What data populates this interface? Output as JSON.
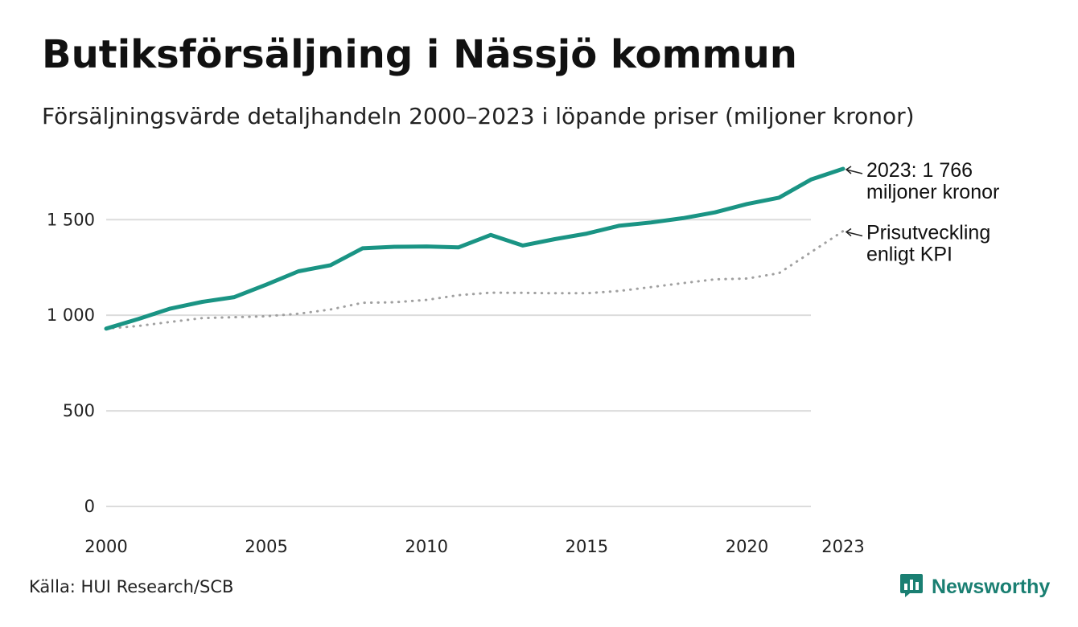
{
  "title": "Butiksförsäljning i Nässjö kommun",
  "subtitle": "Försäljningsvärde detaljhandeln 2000–2023 i löpande priser (miljoner kronor)",
  "source": "Källa: HUI Research/SCB",
  "brand": {
    "name": "Newsworthy",
    "icon": "bar-chart-speech-bubble-icon",
    "color": "#1a7f72"
  },
  "chart_data": {
    "type": "line",
    "title": "Butiksförsäljning i Nässjö kommun",
    "subtitle": "Försäljningsvärde detaljhandeln 2000–2023 i löpande priser (miljoner kronor)",
    "xlabel": "",
    "ylabel": "",
    "x": [
      2000,
      2001,
      2002,
      2003,
      2004,
      2005,
      2006,
      2007,
      2008,
      2009,
      2010,
      2011,
      2012,
      2013,
      2014,
      2015,
      2016,
      2017,
      2018,
      2019,
      2020,
      2021,
      2022,
      2023
    ],
    "xlim": [
      2000,
      2023
    ],
    "ylim": [
      0,
      1766
    ],
    "x_ticks": [
      2000,
      2005,
      2010,
      2015,
      2020,
      2023
    ],
    "x_tick_labels": [
      "2000",
      "2005",
      "2010",
      "2015",
      "2020",
      "2023"
    ],
    "y_ticks": [
      0,
      500,
      1000,
      1500
    ],
    "y_tick_labels": [
      "0",
      "500",
      "1 000",
      "1 500"
    ],
    "grid": true,
    "series": [
      {
        "name": "Försäljningsvärde",
        "style": "solid",
        "color": "#1a9484",
        "values": [
          930,
          980,
          1035,
          1070,
          1095,
          1160,
          1230,
          1262,
          1350,
          1358,
          1360,
          1355,
          1420,
          1365,
          1398,
          1427,
          1468,
          1485,
          1508,
          1538,
          1582,
          1615,
          1710,
          1766
        ]
      },
      {
        "name": "Prisutveckling enligt KPI",
        "style": "dotted",
        "color": "#a0a0a0",
        "values": [
          930,
          944,
          965,
          985,
          990,
          995,
          1008,
          1030,
          1065,
          1068,
          1080,
          1105,
          1118,
          1117,
          1115,
          1115,
          1127,
          1147,
          1168,
          1188,
          1192,
          1220,
          1330,
          1440
        ]
      }
    ],
    "annotations": [
      {
        "target": "Försäljningsvärde",
        "lines": [
          "2023: 1 766",
          "miljoner kronor"
        ]
      },
      {
        "target": "Prisutveckling enligt KPI",
        "lines": [
          "Prisutveckling",
          "enligt KPI"
        ]
      }
    ]
  }
}
